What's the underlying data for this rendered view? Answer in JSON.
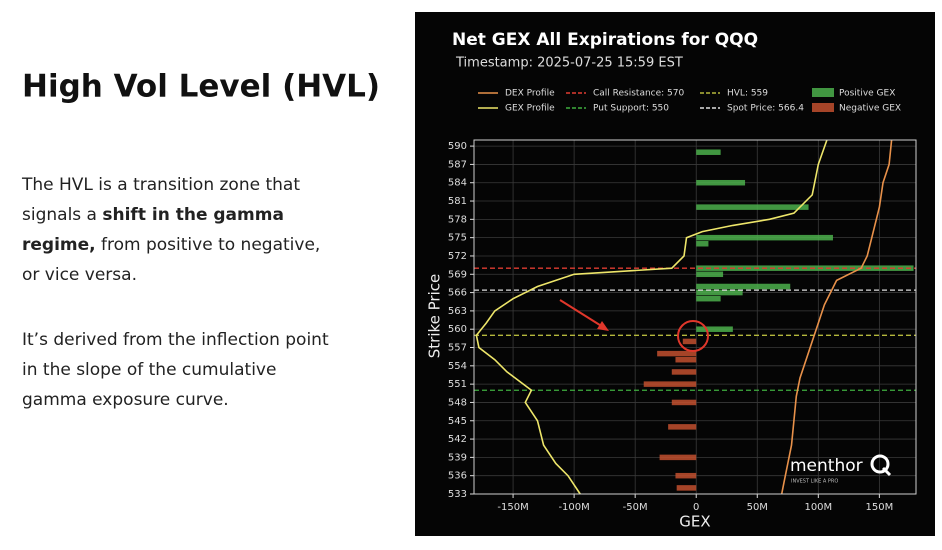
{
  "slide": {
    "heading": "High Vol Level (HVL)",
    "paragraphs": [
      [
        [
          {
            "text": "The HVL is a transition zone that"
          }
        ],
        [
          {
            "text": "signals a "
          },
          {
            "text": "shift in the gamma",
            "bold": true
          }
        ],
        [
          {
            "text": "regime,",
            "bold": true
          },
          {
            "text": " from positive to negative,"
          }
        ],
        [
          {
            "text": "or vice versa."
          }
        ]
      ],
      [
        [
          {
            "text": "It’s derived from the inflection point"
          }
        ],
        [
          {
            "text": "in the slope of the cumulative"
          }
        ],
        [
          {
            "text": "gamma exposure curve."
          }
        ]
      ]
    ]
  },
  "chart_data": {
    "type": "bar",
    "orientation": "horizontal",
    "title": "Net GEX All Expirations for QQQ",
    "subtitle": "Timestamp: 2025-07-25 15:59 EST",
    "xlabel": "GEX",
    "ylabel": "Strike Price",
    "xlim": [
      -182,
      180
    ],
    "ylim": [
      533,
      591
    ],
    "xticks": [
      {
        "value": -150,
        "label": "-150M"
      },
      {
        "value": -100,
        "label": "-100M"
      },
      {
        "value": -50,
        "label": "-50M"
      },
      0,
      {
        "value": 50,
        "label": "50M"
      },
      {
        "value": 100,
        "label": "100M"
      },
      {
        "value": 150,
        "label": "150M"
      }
    ],
    "yticks": [
      533,
      536,
      539,
      542,
      545,
      548,
      551,
      554,
      557,
      560,
      563,
      566,
      569,
      572,
      575,
      578,
      581,
      584,
      587,
      590
    ],
    "grid": true,
    "series": [
      {
        "name": "DEX Profile",
        "type": "line",
        "color": "#e8914a",
        "y": [
          591,
          587,
          584,
          580,
          576,
          572,
          570,
          568,
          566,
          564,
          561,
          558,
          555,
          552,
          549,
          545,
          541,
          538,
          535,
          533
        ],
        "values": [
          160,
          158,
          153,
          150,
          145,
          140,
          135,
          115,
          110,
          105,
          100,
          95,
          90,
          85,
          82,
          80,
          78,
          75,
          72,
          70
        ]
      },
      {
        "name": "GEX Profile",
        "type": "line",
        "color": "#eee66a",
        "y": [
          591,
          587,
          582,
          579,
          578,
          577,
          576,
          575,
          572,
          570,
          569,
          568,
          567,
          565,
          563,
          561,
          559,
          557,
          555,
          553,
          550,
          548,
          545,
          541,
          538,
          536,
          533
        ],
        "values": [
          107,
          100,
          95,
          80,
          60,
          30,
          5,
          -8,
          -10,
          -20,
          -100,
          -115,
          -130,
          -150,
          -165,
          -172,
          -180,
          -178,
          -165,
          -155,
          -135,
          -140,
          -130,
          -125,
          -115,
          -105,
          -95
        ]
      },
      {
        "name": "Positive GEX",
        "type": "bar",
        "color": "#4cb04c",
        "y": [
          589,
          584,
          580,
          575,
          574,
          570,
          569,
          567,
          566,
          565,
          560
        ],
        "values": [
          20,
          40,
          92,
          112,
          10,
          178,
          22,
          77,
          38,
          20,
          30
        ]
      },
      {
        "name": "Negative GEX",
        "type": "bar",
        "color": "#c2502f",
        "y": [
          558,
          556,
          555,
          553,
          551,
          548,
          544,
          539,
          536,
          534
        ],
        "values": [
          -11,
          -32,
          -17,
          -20,
          -43,
          -20,
          -23,
          -30,
          -17,
          -16
        ]
      }
    ],
    "reference_lines": [
      {
        "name": "Call Resistance: 570",
        "value": 570,
        "color": "#e03c31"
      },
      {
        "name": "Put Support: 550",
        "value": 550,
        "color": "#3fae3f"
      },
      {
        "name": "HVL: 559",
        "value": 559,
        "color": "#b5b83c"
      },
      {
        "name": "Spot Price: 566.4",
        "value": 566.4,
        "color": "#e0e0e0"
      }
    ],
    "annotations": [
      "menthor",
      "INVEST LIKE A PRO"
    ]
  }
}
